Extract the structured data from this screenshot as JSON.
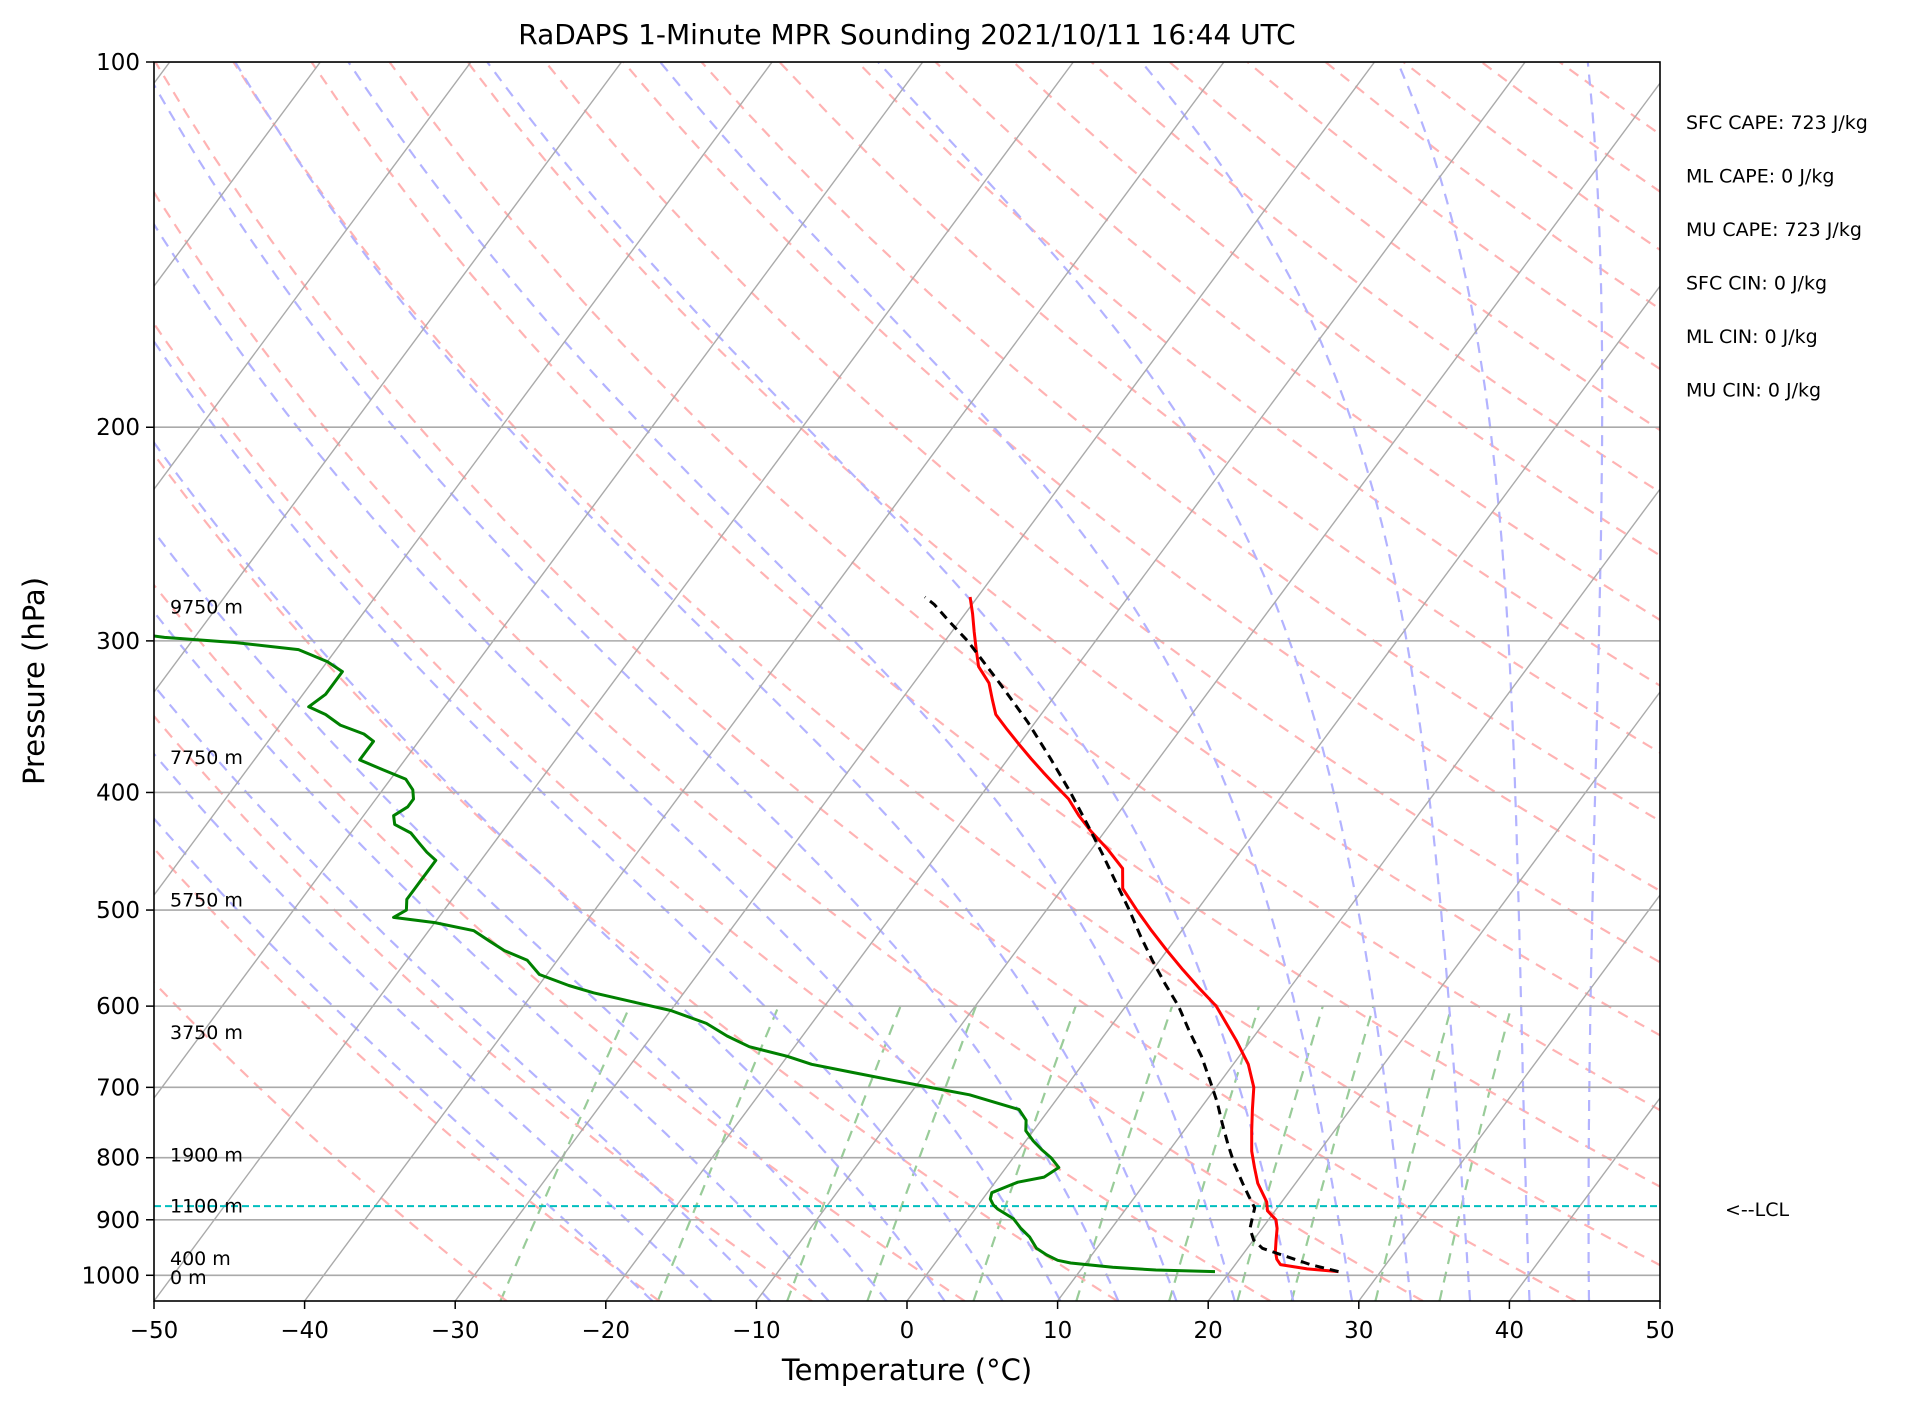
{
  "chart_data": {
    "type": "line",
    "title": "RaDAPS 1-Minute MPR Sounding 2021/10/11 16:44 UTC",
    "xlabel": "Temperature (°C)",
    "ylabel": "Pressure (hPa)",
    "xlim": [
      -50,
      50
    ],
    "ylim": [
      1050,
      100
    ],
    "y_scale": "log",
    "skew_t": true,
    "grid": true,
    "x_ticks": [
      "−50",
      "−40",
      "−30",
      "−20",
      "−10",
      "0",
      "10",
      "20",
      "30",
      "40",
      "50"
    ],
    "x_tick_values": [
      -50,
      -40,
      -30,
      -20,
      -10,
      0,
      10,
      20,
      30,
      40,
      50
    ],
    "y_ticks": [
      "1000",
      "900",
      "800",
      "700",
      "600",
      "500",
      "400",
      "300",
      "200",
      "100"
    ],
    "y_tick_values": [
      1000,
      900,
      800,
      700,
      600,
      500,
      400,
      300,
      200,
      100
    ],
    "series": [
      {
        "role": "temperature",
        "color": "#ff0000",
        "points": [
          [
            27.2,
            993
          ],
          [
            25,
            988
          ],
          [
            23,
            980
          ],
          [
            22.5,
            970
          ],
          [
            22,
            955
          ],
          [
            21.5,
            935
          ],
          [
            21,
            915
          ],
          [
            20.5,
            900
          ],
          [
            19.5,
            885
          ],
          [
            19,
            870
          ],
          [
            17.5,
            840
          ],
          [
            16.5,
            815
          ],
          [
            15.5,
            790
          ],
          [
            14.5,
            760
          ],
          [
            13.5,
            730
          ],
          [
            12.5,
            700
          ],
          [
            11,
            670
          ],
          [
            9,
            640
          ],
          [
            6,
            600
          ],
          [
            4,
            580
          ],
          [
            2,
            560
          ],
          [
            0,
            540
          ],
          [
            -2,
            520
          ],
          [
            -4,
            500
          ],
          [
            -6,
            480
          ],
          [
            -7,
            462
          ],
          [
            -9,
            445
          ],
          [
            -11,
            430
          ],
          [
            -12.5,
            418
          ],
          [
            -14,
            405
          ],
          [
            -15.5,
            395
          ],
          [
            -17,
            385
          ],
          [
            -18.5,
            375
          ],
          [
            -20,
            365
          ],
          [
            -21.5,
            355
          ],
          [
            -23,
            345
          ],
          [
            -24,
            335
          ],
          [
            -25,
            325
          ],
          [
            -26.5,
            315
          ],
          [
            -27.5,
            305
          ],
          [
            -28.5,
            295
          ],
          [
            -29.5,
            285
          ],
          [
            -30.5,
            276
          ]
        ]
      },
      {
        "role": "dewpoint",
        "color": "#008000",
        "points": [
          [
            19,
            993
          ],
          [
            15,
            990
          ],
          [
            12,
            985
          ],
          [
            9,
            977
          ],
          [
            8,
            972
          ],
          [
            7,
            962
          ],
          [
            6,
            950
          ],
          [
            5,
            930
          ],
          [
            4,
            915
          ],
          [
            3,
            898
          ],
          [
            1.5,
            882
          ],
          [
            1,
            875
          ],
          [
            0.5,
            865
          ],
          [
            0.3,
            855
          ],
          [
            1,
            845
          ],
          [
            1.5,
            838
          ],
          [
            3,
            830
          ],
          [
            3.5,
            815
          ],
          [
            2.5,
            800
          ],
          [
            1.5,
            788
          ],
          [
            0.5,
            775
          ],
          [
            -0.5,
            760
          ],
          [
            -1,
            745
          ],
          [
            -2,
            730
          ],
          [
            -4,
            720
          ],
          [
            -6,
            710
          ],
          [
            -9,
            700
          ],
          [
            -12,
            690
          ],
          [
            -15,
            680
          ],
          [
            -18,
            670
          ],
          [
            -20,
            660
          ],
          [
            -23,
            648
          ],
          [
            -25,
            635
          ],
          [
            -27,
            620
          ],
          [
            -30,
            605
          ],
          [
            -33,
            595
          ],
          [
            -36,
            585
          ],
          [
            -38,
            577
          ],
          [
            -40.5,
            565
          ],
          [
            -42,
            550
          ],
          [
            -44,
            540
          ],
          [
            -45.5,
            530
          ],
          [
            -47,
            520
          ],
          [
            -50,
            512
          ],
          [
            -53,
            507
          ],
          [
            -52.5,
            500
          ],
          [
            -53,
            490
          ],
          [
            -53,
            480
          ],
          [
            -53,
            472
          ],
          [
            -53,
            465
          ],
          [
            -53,
            455
          ],
          [
            -54,
            448
          ],
          [
            -55,
            440
          ],
          [
            -56,
            432
          ],
          [
            -57.5,
            425
          ],
          [
            -58,
            418
          ],
          [
            -57.5,
            411
          ],
          [
            -57.5,
            405
          ],
          [
            -58,
            398
          ],
          [
            -59,
            390
          ],
          [
            -61,
            383
          ],
          [
            -63,
            376
          ],
          [
            -63,
            370
          ],
          [
            -63,
            363
          ],
          [
            -64,
            358
          ],
          [
            -66,
            352
          ],
          [
            -67.5,
            345
          ],
          [
            -69,
            340
          ],
          [
            -68.5,
            332
          ],
          [
            -68.5,
            325
          ],
          [
            -68.5,
            318
          ],
          [
            -70,
            312
          ],
          [
            -72.5,
            305
          ],
          [
            -77,
            301
          ],
          [
            -82,
            298
          ],
          [
            -87,
            293
          ],
          [
            -88,
            290
          ],
          [
            -91,
            285
          ],
          [
            -92.5,
            282
          ],
          [
            -93,
            281
          ]
        ]
      },
      {
        "role": "parcel",
        "color": "#000000",
        "style": "dashed",
        "points": [
          [
            27.2,
            993
          ],
          [
            25,
            980
          ],
          [
            23,
            965
          ],
          [
            21,
            950
          ],
          [
            20,
            935
          ],
          [
            19.2,
            915
          ],
          [
            18.8,
            895
          ],
          [
            18.5,
            880
          ],
          [
            17.5,
            860
          ],
          [
            16.5,
            840
          ],
          [
            15,
            810
          ],
          [
            13.6,
            780
          ],
          [
            12.2,
            750
          ],
          [
            10.8,
            720
          ],
          [
            9.2,
            690
          ],
          [
            7.5,
            660
          ],
          [
            5.5,
            630
          ],
          [
            3.5,
            600
          ],
          [
            1.5,
            575
          ],
          [
            -0.5,
            550
          ],
          [
            -2.5,
            525
          ],
          [
            -4.5,
            500
          ],
          [
            -6.7,
            475
          ],
          [
            -9,
            450
          ],
          [
            -11.5,
            425
          ],
          [
            -14.2,
            400
          ],
          [
            -17.2,
            375
          ],
          [
            -20.5,
            350
          ],
          [
            -24.3,
            325
          ],
          [
            -28.5,
            300
          ],
          [
            -30.5,
            290
          ],
          [
            -32.5,
            280
          ],
          [
            -33.5,
            276
          ]
        ]
      }
    ],
    "height_labels": [
      "9750 m",
      "7750 m",
      "5750 m",
      "3750 m",
      "1900 m",
      "1100 m",
      "400 m",
      "0 m"
    ],
    "height_label_pressures": [
      281,
      374,
      490,
      630,
      795,
      876,
      968,
      1003
    ],
    "lcl": {
      "label": "<--LCL",
      "pressure": 877,
      "color": "#00bfbf"
    },
    "indices": [
      "SFC CAPE: 723 J/kg",
      "ML CAPE: 0 J/kg",
      "MU CAPE: 723 J/kg",
      "SFC CIN: 0 J/kg",
      "ML CIN: 0 J/kg",
      "MU CIN: 0 J/kg"
    ],
    "background_line_colors": {
      "isotherm": "#aaaaaa",
      "dry_adiabat": "#ffb3b3",
      "moist_adiabat": "#b3b3ff",
      "mixing_ratio": "#99cc99"
    }
  }
}
